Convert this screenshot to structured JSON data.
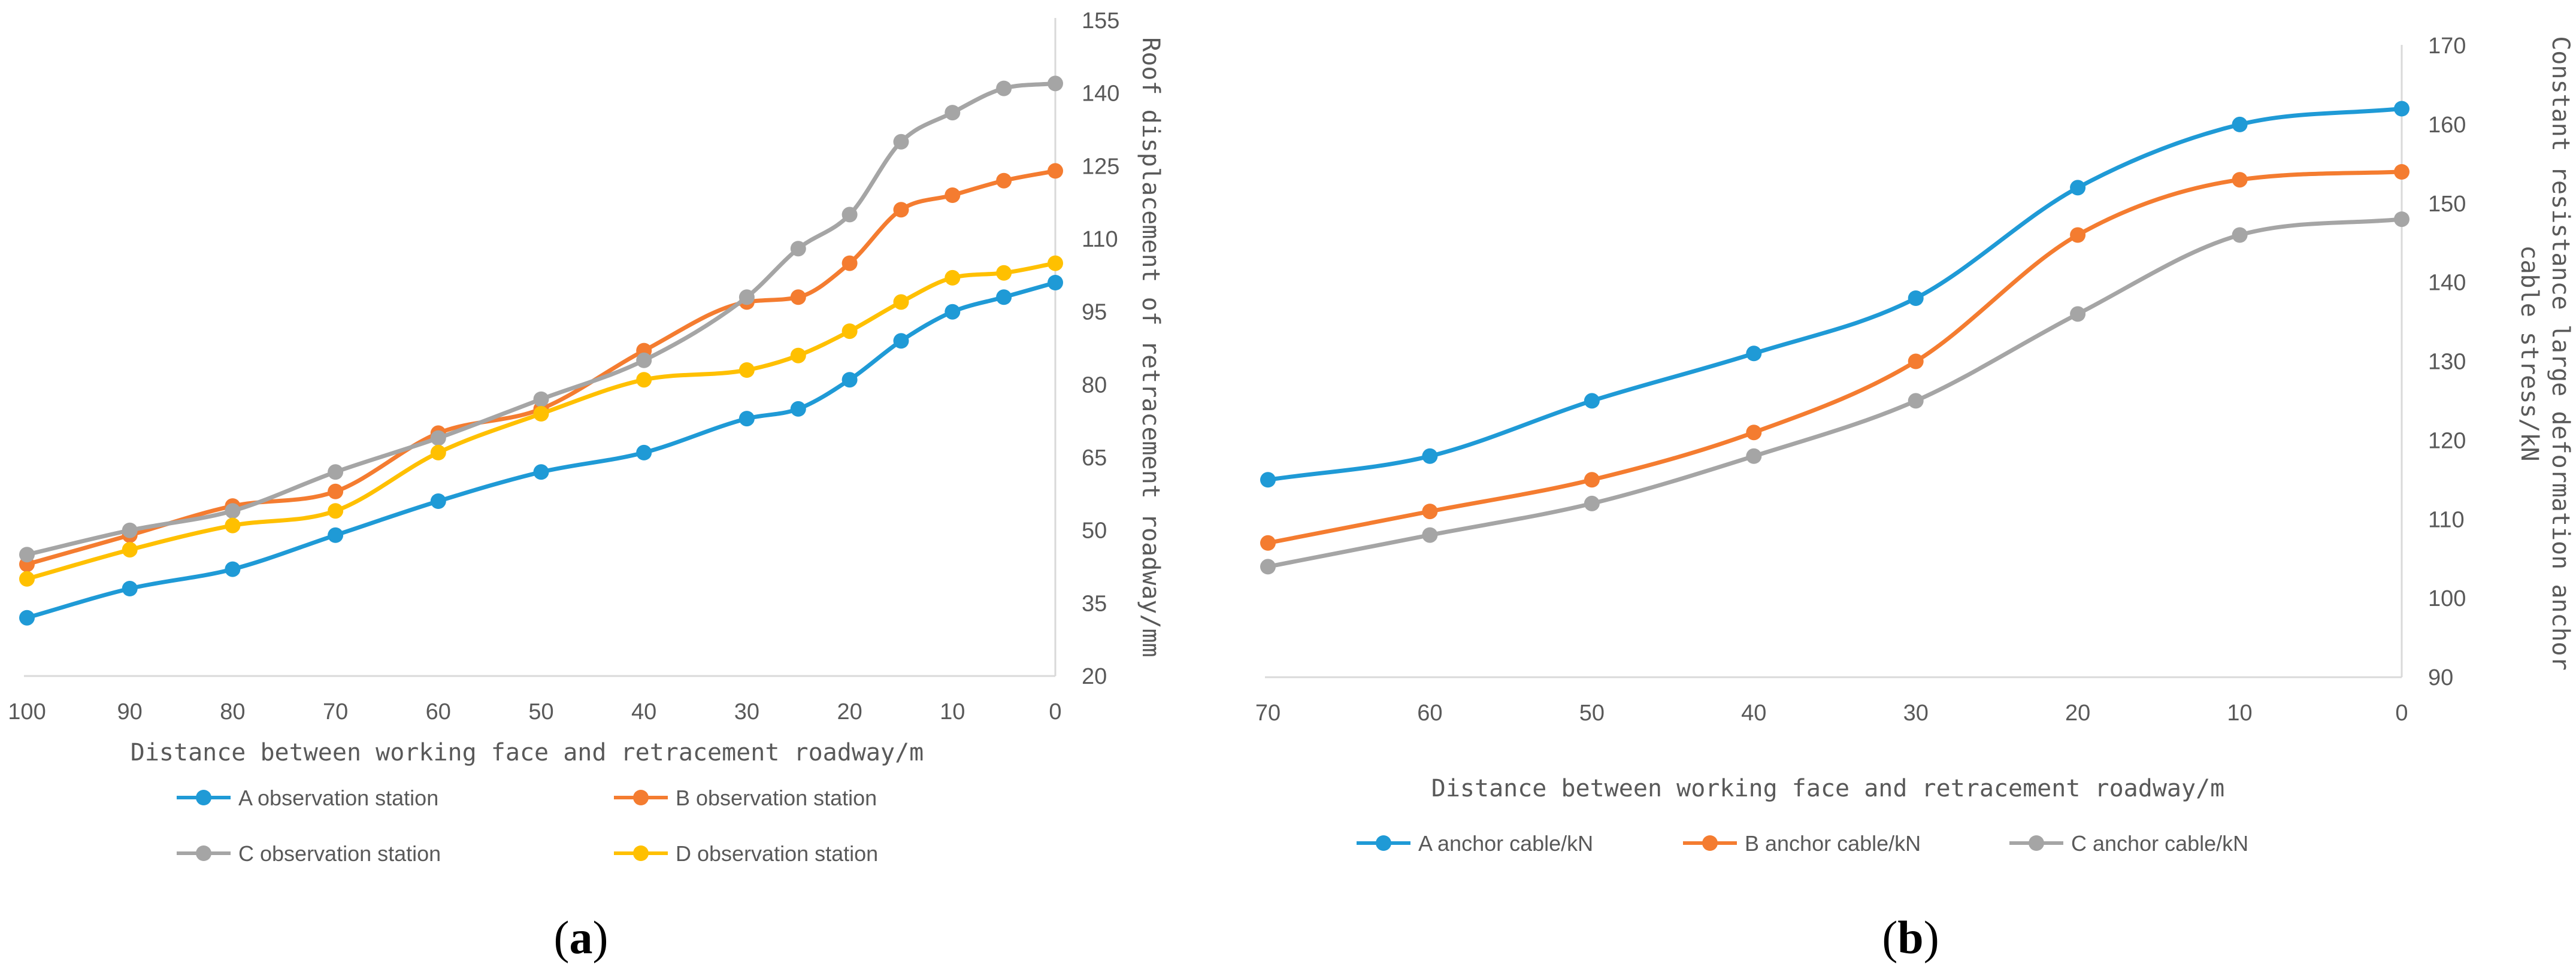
{
  "chart_data": [
    {
      "panel": "a",
      "type": "line",
      "title": "",
      "xlabel": "Distance between working face and retracement roadway/m",
      "ylabel": "Roof displacement of retracement roadway/mm",
      "y_axis_side": "right",
      "x_reversed": true,
      "xlim": [
        0,
        100
      ],
      "ylim": [
        20,
        155
      ],
      "xticks": [
        100,
        90,
        80,
        70,
        60,
        50,
        40,
        30,
        20,
        10,
        0
      ],
      "yticks": [
        20,
        35,
        50,
        65,
        80,
        95,
        110,
        125,
        140,
        155
      ],
      "x": [
        100,
        90,
        80,
        70,
        60,
        50,
        40,
        30,
        25,
        20,
        15,
        10,
        5,
        0
      ],
      "series": [
        {
          "name": "A observation station",
          "color": "#1f9ad6",
          "values": [
            32,
            38,
            42,
            49,
            56,
            62,
            66,
            73,
            75,
            81,
            89,
            95,
            98,
            101
          ]
        },
        {
          "name": "B observation station",
          "color": "#f47c30",
          "values": [
            43,
            49,
            55,
            58,
            70,
            75,
            87,
            97,
            98,
            105,
            116,
            119,
            122,
            124
          ]
        },
        {
          "name": "C observation station",
          "color": "#a5a5a5",
          "values": [
            45,
            50,
            54,
            62,
            69,
            77,
            85,
            98,
            108,
            115,
            130,
            136,
            141,
            142
          ]
        },
        {
          "name": "D observation station",
          "color": "#ffc000",
          "values": [
            40,
            46,
            51,
            54,
            66,
            74,
            81,
            83,
            86,
            91,
            97,
            102,
            103,
            105
          ]
        }
      ],
      "legend_position": "bottom",
      "label": {
        "open": "(",
        "letter": "a",
        "close": ")"
      }
    },
    {
      "panel": "b",
      "type": "line",
      "title": "",
      "xlabel": "Distance between working face and retracement roadway/m",
      "ylabel_lines": [
        "Constant resistance large deformation anchor",
        "cable stress/kN"
      ],
      "y_axis_side": "right",
      "x_reversed": true,
      "xlim": [
        0,
        70
      ],
      "ylim": [
        90,
        170
      ],
      "xticks": [
        70,
        60,
        50,
        40,
        30,
        20,
        10,
        0
      ],
      "yticks": [
        90,
        100,
        110,
        120,
        130,
        140,
        150,
        160,
        170
      ],
      "x": [
        70,
        60,
        50,
        40,
        30,
        20,
        10,
        0
      ],
      "series": [
        {
          "name": "A anchor cable/kN",
          "color": "#1f9ad6",
          "values": [
            115,
            118,
            125,
            131,
            138,
            152,
            160,
            162
          ]
        },
        {
          "name": "B anchor cable/kN",
          "color": "#f47c30",
          "values": [
            107,
            111,
            115,
            121,
            130,
            146,
            153,
            154
          ]
        },
        {
          "name": "C anchor cable/kN",
          "color": "#a5a5a5",
          "values": [
            104,
            108,
            112,
            118,
            125,
            136,
            146,
            148
          ]
        }
      ],
      "legend_position": "bottom",
      "label": {
        "open": "(",
        "letter": "b",
        "close": ")"
      }
    }
  ]
}
